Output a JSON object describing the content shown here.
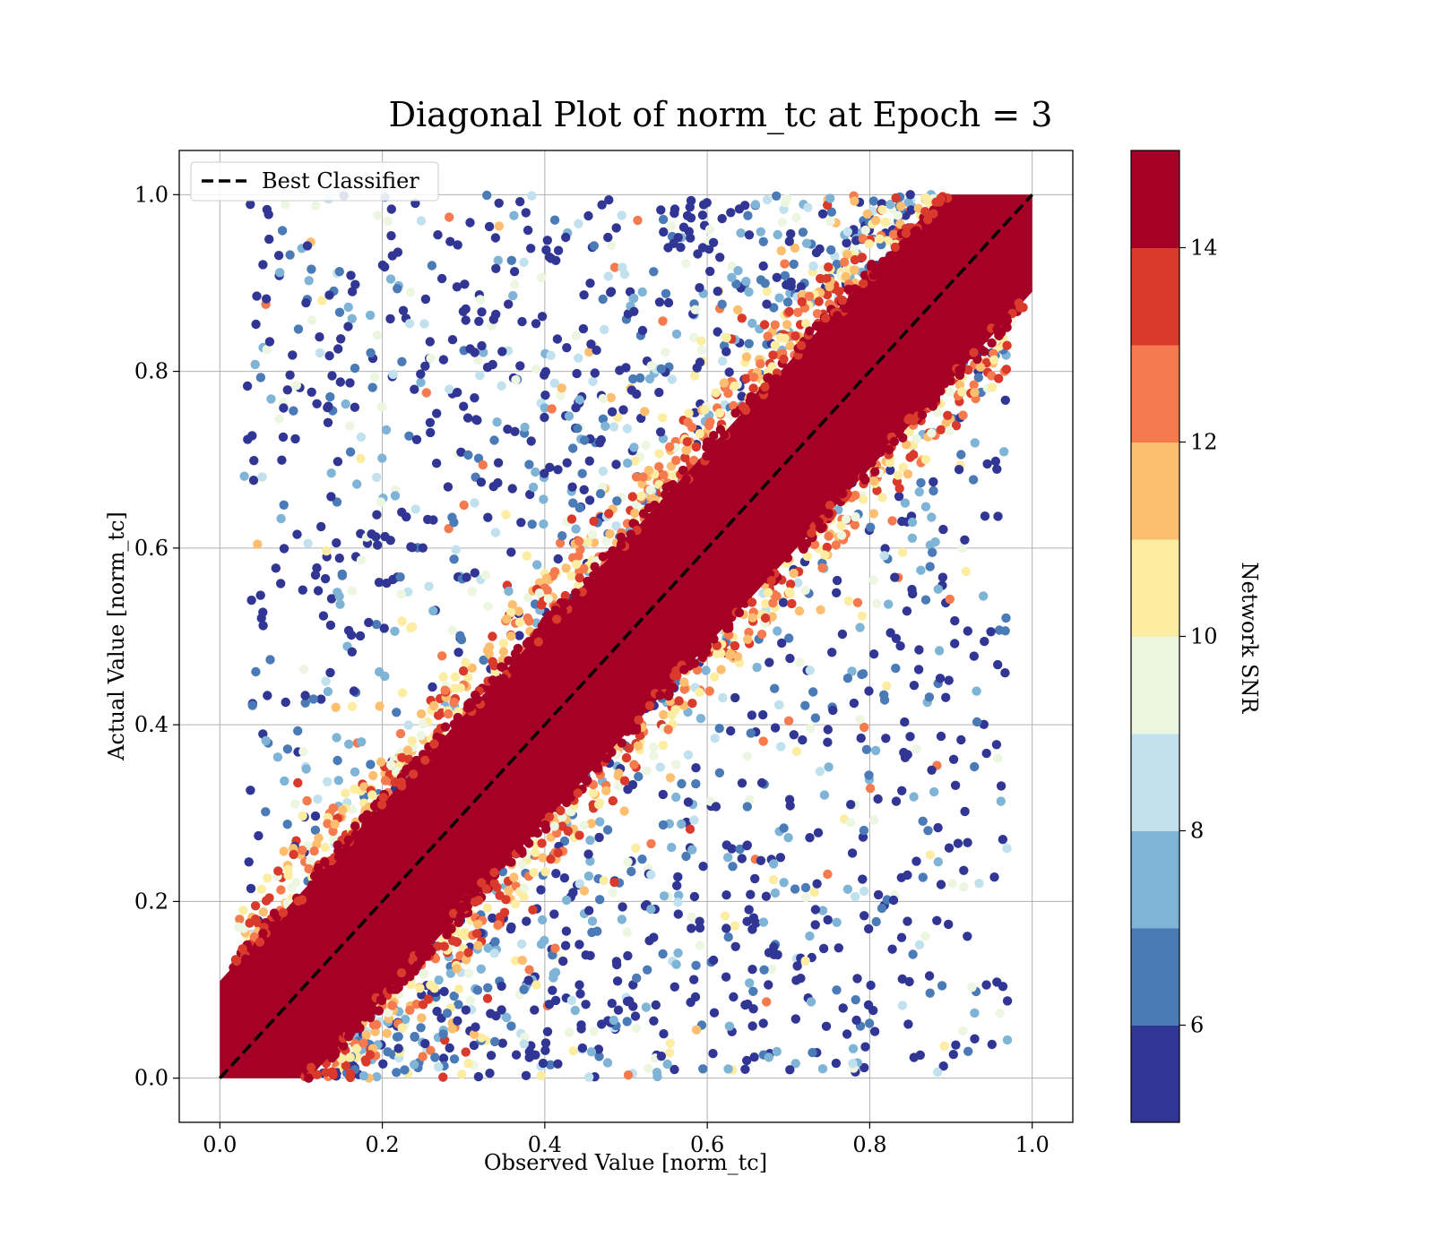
{
  "chart_data": {
    "type": "scatter",
    "title": "Diagonal Plot of norm_tc at Epoch = 3",
    "xlabel": "Observed Value [norm_tc]",
    "ylabel": "Actual Value [norm_tc]",
    "xlim": [
      -0.05,
      1.05
    ],
    "ylim": [
      -0.05,
      1.05
    ],
    "x_ticks": [
      "0.0",
      "0.2",
      "0.4",
      "0.6",
      "0.8",
      "1.0"
    ],
    "y_ticks": [
      "0.0",
      "0.2",
      "0.4",
      "0.6",
      "0.8",
      "1.0"
    ],
    "x_tick_values": [
      0.0,
      0.2,
      0.4,
      0.6,
      0.8,
      1.0
    ],
    "y_tick_values": [
      0.0,
      0.2,
      0.4,
      0.6,
      0.8,
      1.0
    ],
    "grid": true,
    "legend": {
      "position": "top-left",
      "entries": [
        "Best Classifier"
      ]
    },
    "reference_line": {
      "name": "Best Classifier",
      "x": [
        0.0,
        1.0
      ],
      "y": [
        0.0,
        1.0
      ],
      "style": "dashed",
      "color": "#000000"
    },
    "colorbar": {
      "label": "Network SNR",
      "min": 5,
      "max": 15,
      "ticks": [
        "6",
        "8",
        "10",
        "12",
        "14"
      ],
      "tick_values": [
        6,
        8,
        10,
        12,
        14
      ],
      "bins": [
        {
          "from": 5,
          "to": 6,
          "color": "#313695"
        },
        {
          "from": 6,
          "to": 7,
          "color": "#4a7bb7"
        },
        {
          "from": 7,
          "to": 8,
          "color": "#7fb4d6"
        },
        {
          "from": 8,
          "to": 9,
          "color": "#c0e1ed"
        },
        {
          "from": 9,
          "to": 10,
          "color": "#ecf6e0"
        },
        {
          "from": 10,
          "to": 11,
          "color": "#fdeda3"
        },
        {
          "from": 11,
          "to": 12,
          "color": "#fdbe70"
        },
        {
          "from": 12,
          "to": 13,
          "color": "#f57a4e"
        },
        {
          "from": 13,
          "to": 14,
          "color": "#d93a2b"
        },
        {
          "from": 14,
          "to": 15,
          "color": "#a50026"
        }
      ]
    },
    "points_description": "High-SNR points (>=14) form a dense band around the diagonal with half-width ~0.11; lower-SNR points scatter widely off-diagonal within [0,1].",
    "band_half_width": 0.11
  }
}
